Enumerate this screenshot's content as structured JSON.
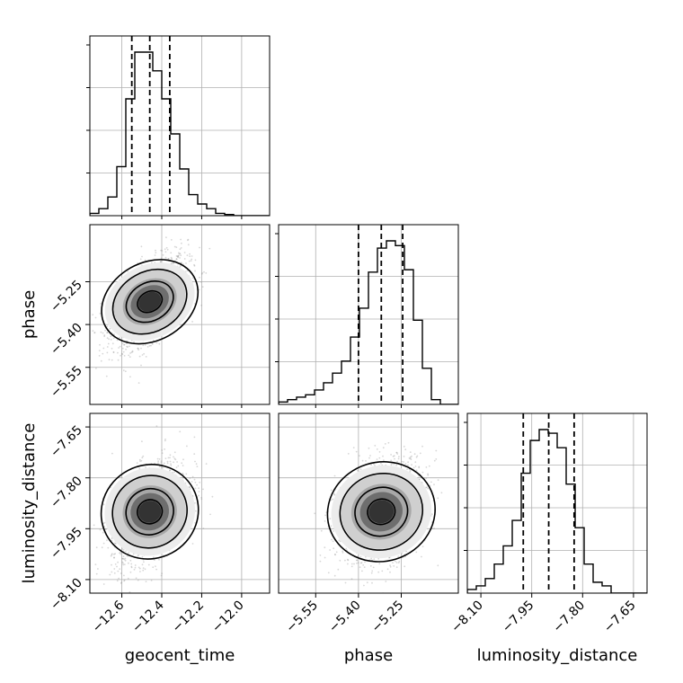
{
  "chart_data": {
    "type": "corner",
    "title": "",
    "parameters": [
      "geocent_time",
      "phase",
      "luminosity_distance"
    ],
    "ranges": {
      "geocent_time": [
        -12.76,
        -11.86
      ],
      "phase": [
        -5.68,
        -5.05
      ],
      "luminosity_distance": [
        -8.14,
        -7.61
      ]
    },
    "ticks": {
      "geocent_time": {
        "values": [
          -12.6,
          -12.4,
          -12.2,
          -12.0
        ],
        "labels": [
          "−12.6",
          "−12.4",
          "−12.2",
          "−12.0"
        ]
      },
      "phase": {
        "values": [
          -5.55,
          -5.4,
          -5.25
        ],
        "labels": [
          "−5.55",
          "−5.40",
          "−5.25"
        ]
      },
      "luminosity_distance": {
        "values": [
          -8.1,
          -7.95,
          -7.8,
          -7.65
        ],
        "labels": [
          "−8.10",
          "−7.95",
          "−7.80",
          "−7.65"
        ]
      }
    },
    "quantiles": {
      "geocent_time": [
        -12.55,
        -12.46,
        -12.36
      ],
      "phase": [
        -5.4,
        -5.32,
        -5.245
      ],
      "luminosity_distance": [
        -7.975,
        -7.9,
        -7.825
      ]
    },
    "histograms": {
      "geocent_time": {
        "range": [
          -12.76,
          -11.86
        ],
        "counts": [
          1,
          3,
          8,
          21,
          50,
          70,
          70,
          62,
          50,
          35,
          20,
          9,
          5,
          3,
          1,
          0.5,
          0,
          0,
          0,
          0
        ]
      },
      "phase": {
        "range": [
          -5.68,
          -5.05
        ],
        "counts": [
          1,
          2,
          3,
          4,
          6,
          9,
          13,
          18,
          28,
          40,
          55,
          65,
          68,
          66,
          56,
          35,
          15,
          2,
          0,
          0
        ]
      },
      "luminosity_distance": {
        "range": [
          -8.14,
          -7.61
        ],
        "counts": [
          1,
          2,
          4,
          8,
          13,
          20,
          33,
          42,
          45,
          44,
          40,
          30,
          18,
          8,
          3,
          2,
          0,
          0,
          0,
          0
        ]
      }
    },
    "grid": true,
    "colors": {
      "line": "#000000",
      "grid": "#b0b0b0",
      "scatter": "#8c8c8c"
    }
  }
}
